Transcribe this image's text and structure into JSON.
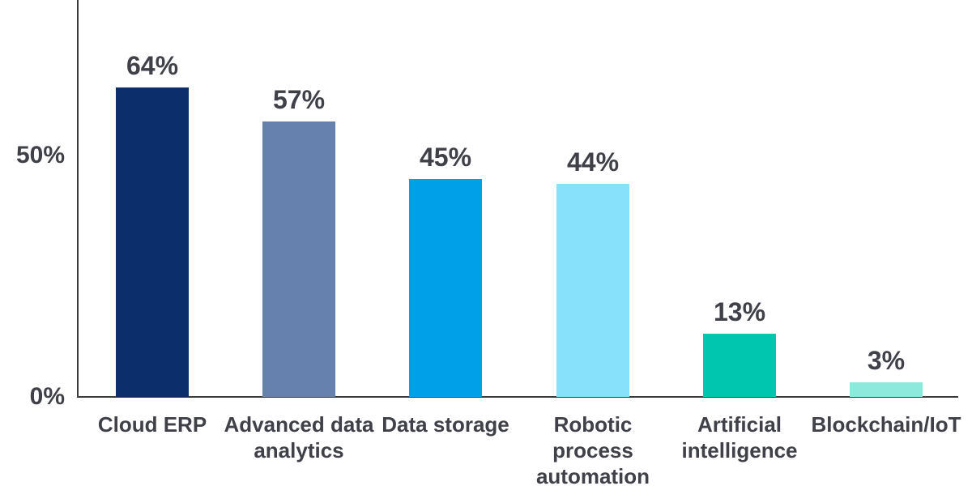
{
  "chart_data": {
    "type": "bar",
    "title": "",
    "xlabel": "",
    "ylabel": "",
    "categories": [
      "Cloud ERP",
      "Advanced data\nanalytics",
      "Data storage",
      "Robotic\nprocess\nautomation",
      "Artificial\nintelligence",
      "Blockchain/IoT"
    ],
    "values": [
      64,
      57,
      45,
      44,
      13,
      3
    ],
    "value_labels": [
      "64%",
      "57%",
      "45%",
      "44%",
      "13%",
      "3%"
    ],
    "unit": "%",
    "bar_colors": [
      "#0c2e6a",
      "#6781ae",
      "#00a0e9",
      "#87e1fb",
      "#00c6b0",
      "#8de9dc"
    ],
    "yticks": [
      {
        "label": "50%",
        "value": 50
      },
      {
        "label": "0%",
        "value": 0
      }
    ],
    "ylim": [
      0,
      82
    ],
    "grid": false,
    "legend": false,
    "colors": {
      "text": "#3f4048",
      "axis": "#3a3a3a",
      "background": "#ffffff"
    }
  }
}
